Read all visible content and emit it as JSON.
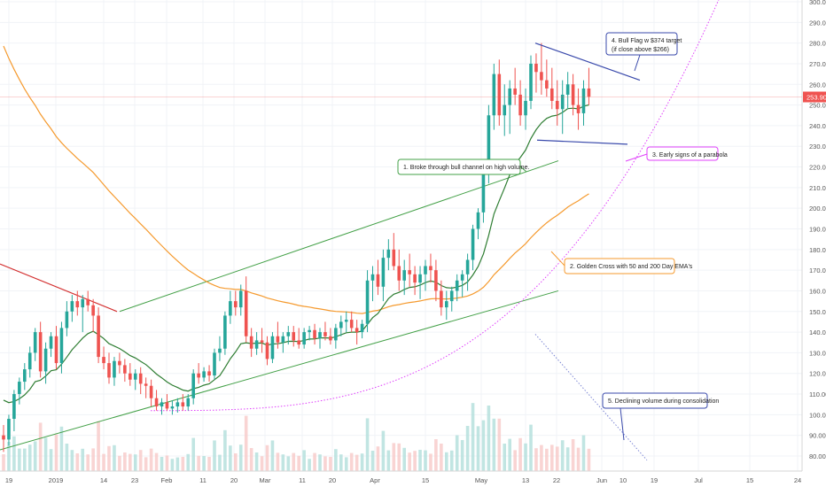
{
  "chart_data": {
    "type": "candlestick",
    "y_axis": {
      "position": "right",
      "ticks": [
        80,
        90,
        100,
        110,
        120,
        130,
        140,
        150,
        160,
        170,
        180,
        190,
        200,
        210,
        220,
        230,
        240,
        250,
        260,
        270,
        280,
        290,
        300
      ],
      "tick_labels": [
        "80.00",
        "90.00",
        "100.00",
        "110.00",
        "120.00",
        "130.00",
        "140.00",
        "150.00",
        "160.00",
        "170.00",
        "180.00",
        "190.00",
        "200.00",
        "210.00",
        "220.00",
        "230.00",
        "240.00",
        "250.00",
        "260.00",
        "270.00",
        "280.00",
        "290.00",
        "300.00"
      ],
      "ylim": [
        75,
        300
      ]
    },
    "x_axis": {
      "tick_labels": [
        "19",
        "2019",
        "14",
        "23",
        "Feb",
        "11",
        "20",
        "Mar",
        "11",
        "20",
        "Apr",
        "15",
        "May",
        "13",
        "22",
        "Jun",
        "10",
        "19",
        "Jul",
        "15",
        "24"
      ],
      "date_range": [
        "2018-12-19",
        "2019-07-24"
      ]
    },
    "last_price": {
      "value": 253.9,
      "label": "253.90"
    },
    "grid": true,
    "series": [
      {
        "type": "candlestick",
        "ohlc": [
          [
            90,
            95,
            82,
            88
          ],
          [
            88,
            100,
            85,
            98
          ],
          [
            98,
            112,
            92,
            110
          ],
          [
            110,
            118,
            105,
            116
          ],
          [
            116,
            125,
            112,
            122
          ],
          [
            122,
            133,
            118,
            130
          ],
          [
            130,
            142,
            126,
            140
          ],
          [
            140,
            145,
            118,
            121
          ],
          [
            121,
            135,
            115,
            132
          ],
          [
            132,
            140,
            128,
            138
          ],
          [
            138,
            143,
            122,
            125
          ],
          [
            125,
            145,
            120,
            142
          ],
          [
            142,
            155,
            138,
            150
          ],
          [
            150,
            158,
            145,
            155
          ],
          [
            155,
            160,
            148,
            152
          ],
          [
            152,
            158,
            140,
            156
          ],
          [
            156,
            160,
            150,
            153
          ],
          [
            153,
            156,
            140,
            148
          ],
          [
            148,
            152,
            125,
            128
          ],
          [
            128,
            133,
            122,
            125
          ],
          [
            125,
            130,
            115,
            118
          ],
          [
            118,
            128,
            114,
            126
          ],
          [
            126,
            130,
            120,
            124
          ],
          [
            124,
            127,
            116,
            120
          ],
          [
            120,
            125,
            114,
            117
          ],
          [
            117,
            122,
            112,
            120
          ],
          [
            120,
            123,
            110,
            115
          ],
          [
            115,
            118,
            108,
            114
          ],
          [
            114,
            117,
            104,
            108
          ],
          [
            108,
            112,
            102,
            104
          ],
          [
            104,
            108,
            100,
            106
          ],
          [
            106,
            110,
            102,
            103
          ],
          [
            103,
            107,
            100,
            104
          ],
          [
            104,
            108,
            101,
            106
          ],
          [
            106,
            110,
            102,
            104
          ],
          [
            104,
            110,
            102,
            108
          ],
          [
            108,
            122,
            105,
            120
          ],
          [
            120,
            125,
            115,
            118
          ],
          [
            118,
            123,
            116,
            121
          ],
          [
            121,
            124,
            116,
            119
          ],
          [
            119,
            132,
            117,
            130
          ],
          [
            130,
            138,
            126,
            132
          ],
          [
            132,
            150,
            129,
            148
          ],
          [
            148,
            160,
            144,
            155
          ],
          [
            155,
            160,
            148,
            152
          ],
          [
            152,
            163,
            148,
            160
          ],
          [
            160,
            167,
            135,
            138
          ],
          [
            138,
            142,
            128,
            132
          ],
          [
            132,
            140,
            129,
            136
          ],
          [
            136,
            142,
            130,
            135
          ],
          [
            135,
            138,
            124,
            127
          ],
          [
            127,
            140,
            125,
            138
          ],
          [
            138,
            145,
            132,
            135
          ],
          [
            135,
            140,
            130,
            138
          ],
          [
            138,
            143,
            134,
            140
          ],
          [
            140,
            143,
            133,
            136
          ],
          [
            136,
            142,
            132,
            134
          ],
          [
            134,
            142,
            132,
            140
          ],
          [
            140,
            143,
            136,
            141
          ],
          [
            141,
            144,
            134,
            137
          ],
          [
            137,
            142,
            132,
            140
          ],
          [
            140,
            145,
            136,
            138
          ],
          [
            138,
            142,
            134,
            136
          ],
          [
            136,
            144,
            132,
            142
          ],
          [
            142,
            148,
            138,
            145
          ],
          [
            145,
            150,
            140,
            146
          ],
          [
            146,
            150,
            140,
            142
          ],
          [
            142,
            146,
            134,
            140
          ],
          [
            140,
            146,
            137,
            144
          ],
          [
            144,
            170,
            140,
            165
          ],
          [
            165,
            172,
            155,
            168
          ],
          [
            168,
            175,
            158,
            162
          ],
          [
            162,
            180,
            155,
            176
          ],
          [
            176,
            185,
            170,
            180
          ],
          [
            180,
            188,
            170,
            172
          ],
          [
            172,
            180,
            160,
            165
          ],
          [
            165,
            175,
            158,
            170
          ],
          [
            170,
            178,
            162,
            168
          ],
          [
            168,
            172,
            158,
            164
          ],
          [
            164,
            172,
            156,
            168
          ],
          [
            168,
            175,
            160,
            172
          ],
          [
            172,
            178,
            164,
            170
          ],
          [
            170,
            175,
            155,
            160
          ],
          [
            160,
            165,
            148,
            152
          ],
          [
            152,
            160,
            146,
            155
          ],
          [
            155,
            162,
            150,
            160
          ],
          [
            160,
            168,
            155,
            165
          ],
          [
            165,
            170,
            157,
            168
          ],
          [
            168,
            178,
            160,
            175
          ],
          [
            175,
            192,
            170,
            190
          ],
          [
            190,
            200,
            185,
            198
          ],
          [
            198,
            222,
            193,
            218
          ],
          [
            218,
            250,
            212,
            245
          ],
          [
            245,
            270,
            238,
            265
          ],
          [
            265,
            272,
            240,
            245
          ],
          [
            245,
            260,
            235,
            250
          ],
          [
            250,
            262,
            236,
            258
          ],
          [
            258,
            268,
            250,
            255
          ],
          [
            255,
            262,
            240,
            245
          ],
          [
            245,
            258,
            238,
            252
          ],
          [
            252,
            274,
            248,
            270
          ],
          [
            270,
            275,
            256,
            266
          ],
          [
            266,
            280,
            255,
            262
          ],
          [
            262,
            272,
            254,
            258
          ],
          [
            258,
            268,
            248,
            252
          ],
          [
            252,
            262,
            240,
            248
          ],
          [
            248,
            262,
            236,
            255
          ],
          [
            255,
            266,
            248,
            260
          ],
          [
            260,
            265,
            245,
            250
          ],
          [
            250,
            258,
            238,
            246
          ],
          [
            246,
            262,
            240,
            258
          ],
          [
            258,
            268,
            250,
            254
          ]
        ]
      },
      {
        "name": "",
        "type": "ema",
        "color": "#f59a2e"
      },
      {
        "name": "",
        "type": "ema",
        "color": "#2e7d32"
      },
      {
        "name": "",
        "type": "volume"
      }
    ],
    "annotations": [
      {
        "id": 1,
        "text": "1. Broke through bull channel on high volume."
      },
      {
        "id": 2,
        "text": "2. Golden Cross with 50 and 200 Day EMA's"
      },
      {
        "id": 3,
        "text": "3. Early signs of a parabola"
      },
      {
        "id": 4,
        "text": "4. Bull Flag w $374 target\n(if close above $266)",
        "lines": [
          "4. Bull Flag w $374 target",
          "(if close above $266)"
        ]
      },
      {
        "id": 5,
        "text": "5. Declining volume during consolidation"
      }
    ]
  },
  "colors": {
    "up": "#26a69a",
    "down": "#ef5350",
    "up_volume": "#b2dfdb",
    "down_volume": "#f8c9c8",
    "ema_fast": "#2e7d32",
    "ema_slow": "#f59a2e",
    "channel": "#43a047",
    "downtrend": "#d32f2f",
    "parabola": "#e040fb",
    "flag": "#3949ab",
    "price_tag": "#ef5350",
    "annotation_green": "#43a047",
    "annotation_orange": "#f59a2e",
    "annotation_magenta": "#e040fb",
    "annotation_blue": "#3949ab"
  }
}
